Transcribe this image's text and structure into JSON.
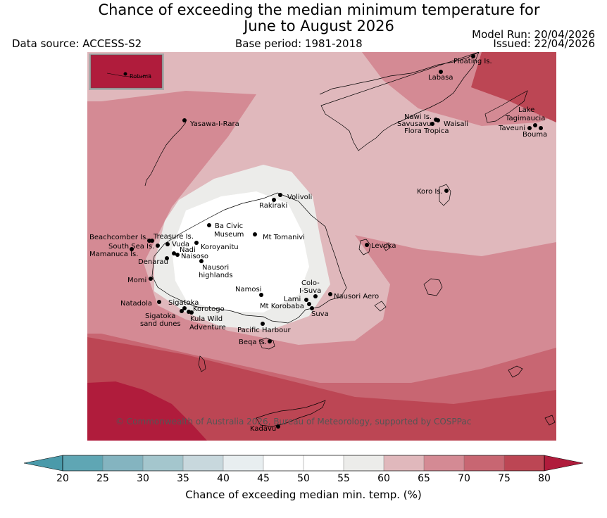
{
  "title": {
    "line1": "Chance of exceeding the median minimum temperature for",
    "line2": "June to August 2026"
  },
  "meta": {
    "data_source": "Data source: ACCESS-S2",
    "base_period": "Base period: 1981-2018",
    "model_run": "Model Run: 20/04/2026",
    "issued": "Issued: 22/04/2026"
  },
  "copyright": "© Commonwealth of Australia 2026, Bureau of Meteorology, supported by COSPPac",
  "inset_label": "Rotuma",
  "colorbar": {
    "label": "Chance of exceeding median min. temp. (%)",
    "ticks": [
      "20",
      "25",
      "30",
      "35",
      "40",
      "45",
      "50",
      "55",
      "60",
      "65",
      "70",
      "75",
      "80"
    ],
    "colors": [
      "#5fa6b4",
      "#84b4c0",
      "#a4c6cd",
      "#c8d8dd",
      "#e8eef0",
      "#ffffff",
      "#ffffff",
      "#ececea",
      "#e0b8bc",
      "#d48a94",
      "#c86672",
      "#bc4654"
    ],
    "low_extend_color": "#4a9aaa",
    "high_extend_color": "#b01c3c"
  },
  "places": [
    {
      "name": "Floating Is."
    },
    {
      "name": "Labasa"
    },
    {
      "name": "Yasawa-I-Rara"
    },
    {
      "name": "Nawi Is."
    },
    {
      "name": "Savusavu"
    },
    {
      "name": "Waisali"
    },
    {
      "name": "Flora Tropica"
    },
    {
      "name": "Lake"
    },
    {
      "name": "Tagimaucia"
    },
    {
      "name": "Taveuni"
    },
    {
      "name": "Bouma"
    },
    {
      "name": "Koro Is."
    },
    {
      "name": "Volivoli"
    },
    {
      "name": "Rakiraki"
    },
    {
      "name": "Ba Civic"
    },
    {
      "name": "Museum"
    },
    {
      "name": "Mt Tomanivi"
    },
    {
      "name": "Beachcomber Is."
    },
    {
      "name": "Treasure Is."
    },
    {
      "name": "South Sea Is."
    },
    {
      "name": "Vuda"
    },
    {
      "name": "Koroyanitu"
    },
    {
      "name": "Mamanuca Is."
    },
    {
      "name": "Nadi"
    },
    {
      "name": "Naisoso"
    },
    {
      "name": "Denarau"
    },
    {
      "name": "Levuka"
    },
    {
      "name": "Nausori"
    },
    {
      "name": "highlands"
    },
    {
      "name": "Momi"
    },
    {
      "name": "Colo-"
    },
    {
      "name": "I-Suva"
    },
    {
      "name": "Namosi"
    },
    {
      "name": "Nausori Aero"
    },
    {
      "name": "Lami"
    },
    {
      "name": "Natadola"
    },
    {
      "name": "Sigatoka"
    },
    {
      "name": "Mt Korobaba"
    },
    {
      "name": "Korotogo"
    },
    {
      "name": "Suva"
    },
    {
      "name": "Sigatoka"
    },
    {
      "name": "sand dunes"
    },
    {
      "name": "Kula Wild"
    },
    {
      "name": "Adventure"
    },
    {
      "name": "Pacific Harbour"
    },
    {
      "name": "Beqa Is."
    },
    {
      "name": "Kadavu"
    }
  ]
}
